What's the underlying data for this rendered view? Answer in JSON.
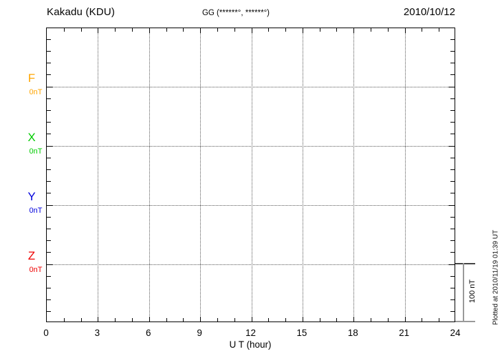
{
  "header": {
    "station_title": "Kakadu (KDU)",
    "coordinates_label": "GG (******°, ******°)",
    "date": "2010/10/12"
  },
  "chart_data": {
    "type": "line",
    "title": "Kakadu (KDU)",
    "subtitle": "GG (******°, ******°)",
    "date": "2010/10/12",
    "xlabel": "U T (hour)",
    "xlim": [
      0,
      24
    ],
    "x_ticks": [
      0,
      3,
      6,
      9,
      12,
      15,
      18,
      21,
      24
    ],
    "x_minor_tick_step_hours": 1,
    "grid": "dotted vertical lines every 3 hours; dotted horizontal line at each component baseline",
    "y_minor_tick_nT": 20,
    "series": [
      {
        "name": "F",
        "value_label": "0nT",
        "baseline_nT": 0,
        "color": "#FFA500",
        "values": []
      },
      {
        "name": "X",
        "value_label": "0nT",
        "baseline_nT": 0,
        "color": "#00CC00",
        "values": []
      },
      {
        "name": "Y",
        "value_label": "0nT",
        "baseline_nT": 0,
        "color": "#0000DD",
        "values": []
      },
      {
        "name": "Z",
        "value_label": "0nT",
        "baseline_nT": 0,
        "color": "#EE0000",
        "values": []
      }
    ],
    "scale_bar": {
      "label": "100 nT",
      "span_nT": 100
    },
    "footnote": "Plotted at 2010/11/19 01:39 UT"
  }
}
